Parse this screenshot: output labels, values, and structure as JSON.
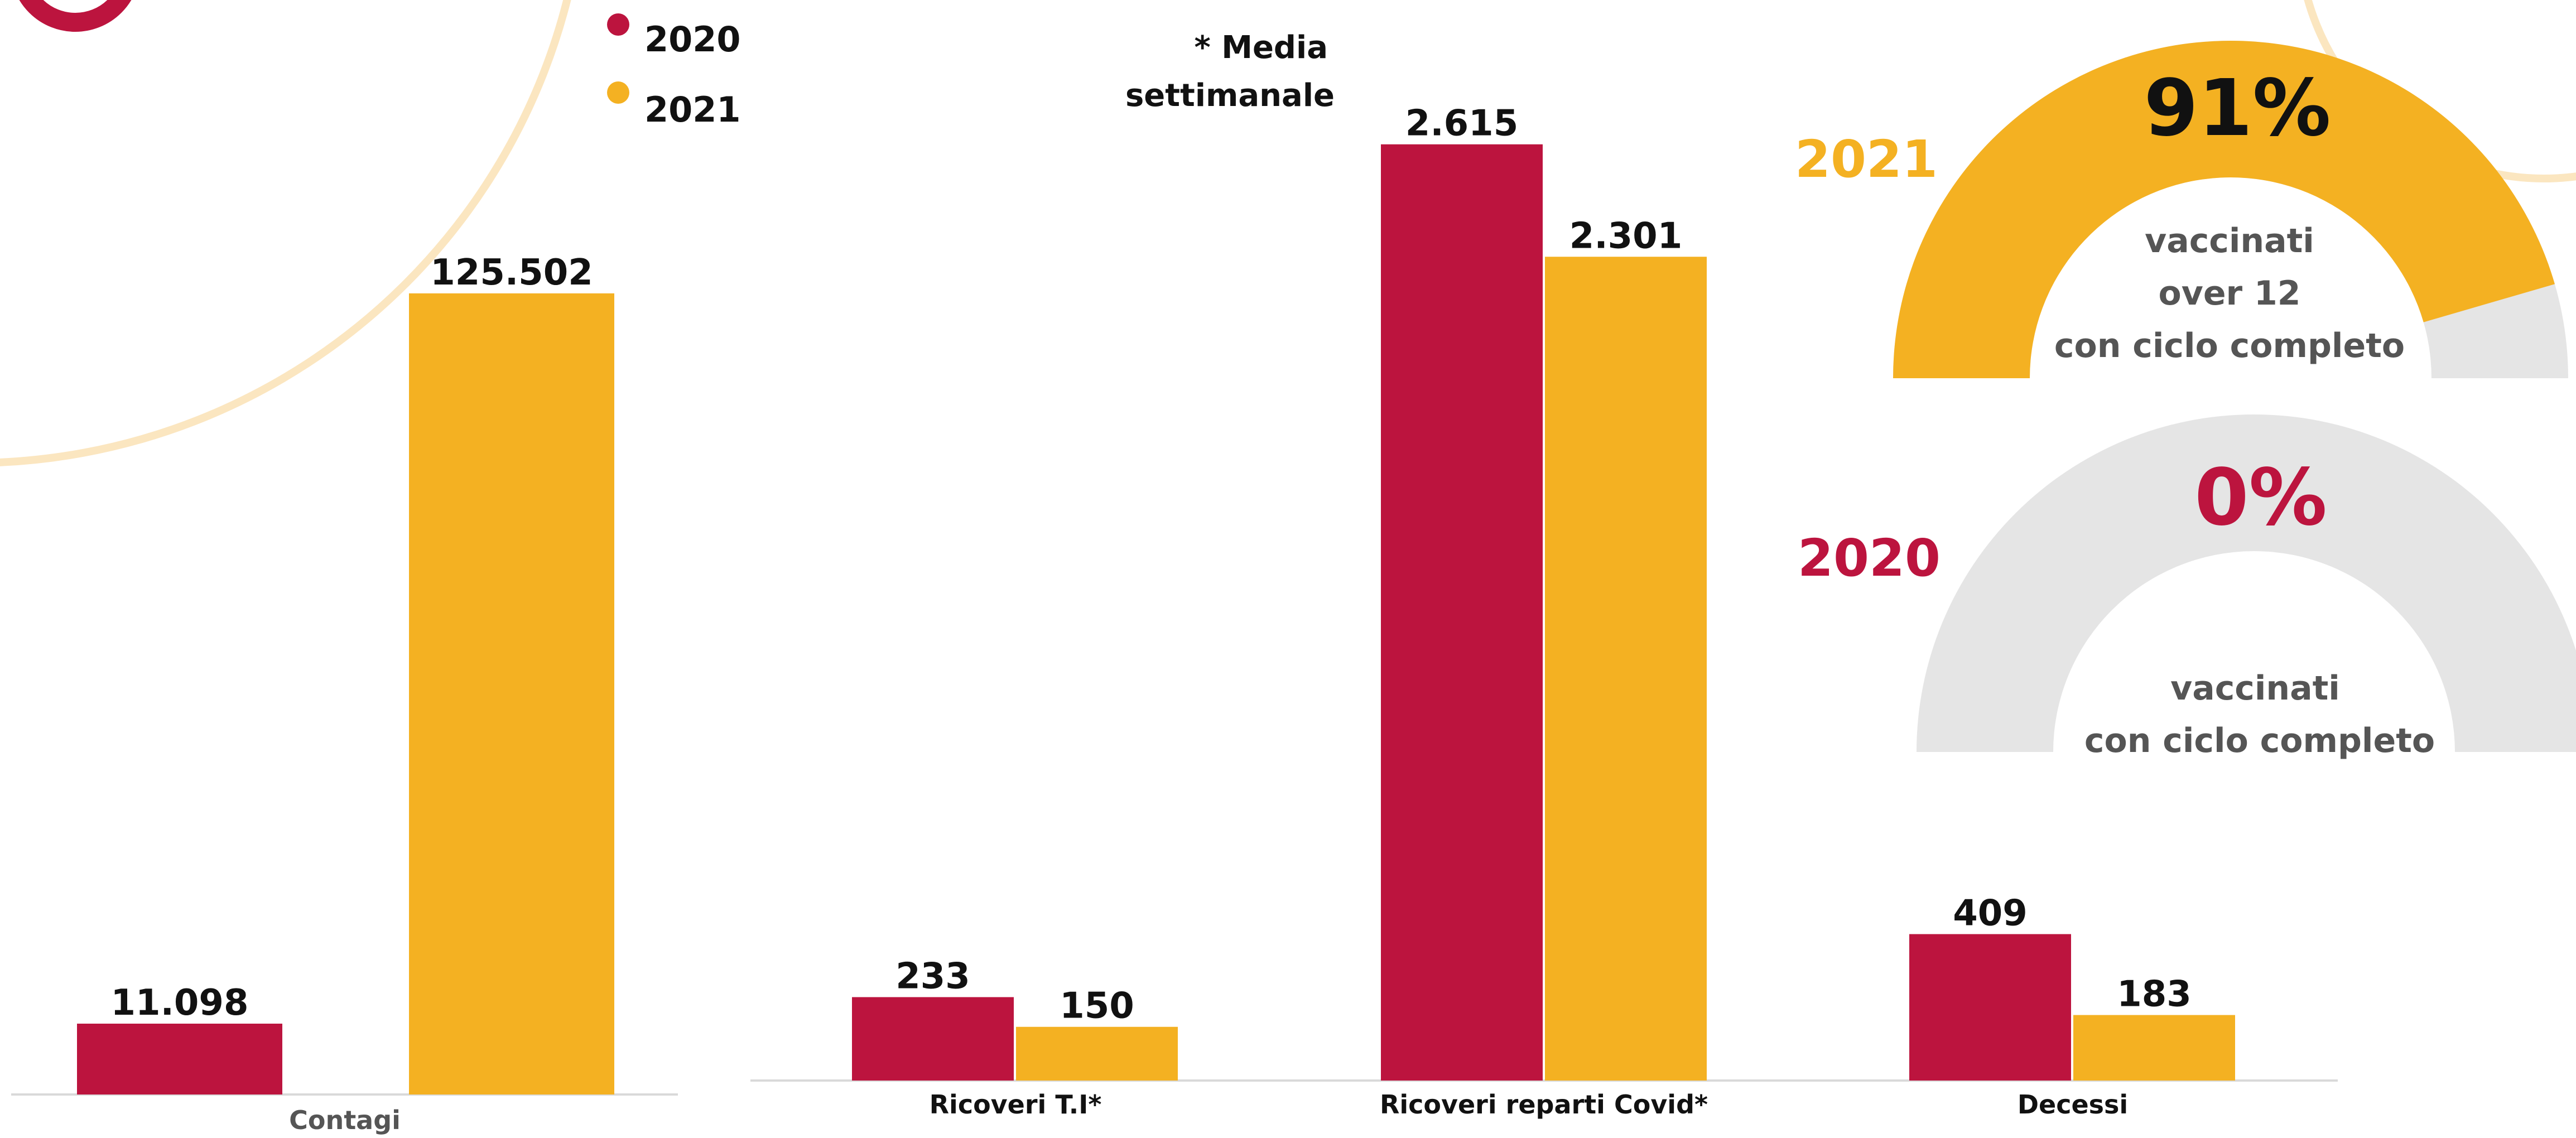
{
  "colors": {
    "c2020": "#BC143E",
    "c2021": "#F4B122",
    "track": "#E5E5E5",
    "arc_decor": "#FBE6C0",
    "axis": "#D9D9D9",
    "cat_left": "#555555",
    "cat_right": "#111111"
  },
  "legend": [
    {
      "label": "2020",
      "color": "#BC143E"
    },
    {
      "label": "2021",
      "color": "#F4B122"
    }
  ],
  "note": {
    "line1": "* Media",
    "line2": "settimanale"
  },
  "chart_data": [
    {
      "type": "bar",
      "categories": [
        "Contagi"
      ],
      "series": [
        {
          "name": "2020",
          "values": [
            11098
          ]
        },
        {
          "name": "2021",
          "values": [
            125502
          ]
        }
      ],
      "value_labels": {
        "2020": [
          "11.098"
        ],
        "2021": [
          "125.502"
        ]
      },
      "ylim": [
        0,
        140000
      ]
    },
    {
      "type": "bar",
      "categories": [
        "Ricoveri T.I*",
        "Ricoveri reparti Covid*",
        "Decessi"
      ],
      "series": [
        {
          "name": "2020",
          "values": [
            233,
            2615,
            409
          ]
        },
        {
          "name": "2021",
          "values": [
            150,
            2301,
            183
          ]
        }
      ],
      "value_labels": {
        "2020": [
          "233",
          "2.615",
          "409"
        ],
        "2021": [
          "150",
          "2.301",
          "183"
        ]
      },
      "ylim": [
        0,
        2800
      ]
    },
    {
      "type": "gauge",
      "year": "2021",
      "value": 91,
      "display": "91%",
      "caption": [
        "vaccinati",
        "over 12",
        "con ciclo completo"
      ]
    },
    {
      "type": "gauge",
      "year": "2020",
      "value": 0,
      "display": "0%",
      "caption": [
        "vaccinati",
        "con ciclo completo"
      ]
    }
  ]
}
